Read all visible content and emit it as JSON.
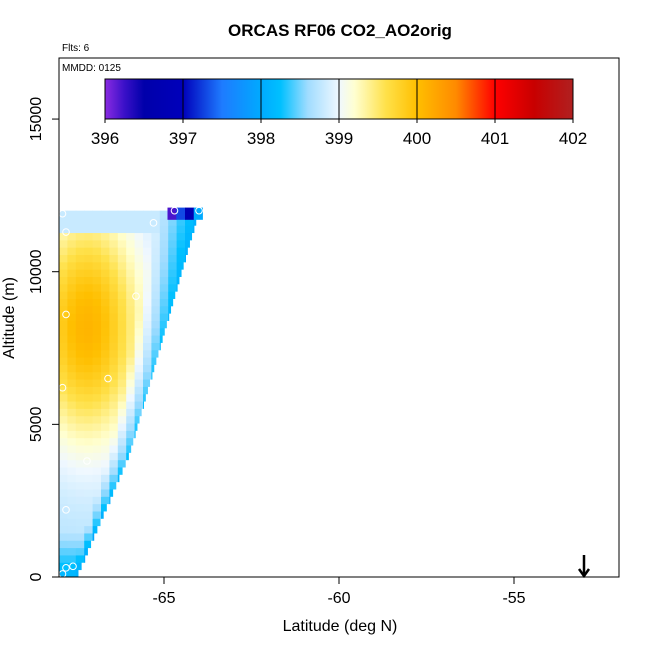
{
  "chart_data": {
    "type": "heatmap",
    "title": "ORCAS RF06 CO2_AO2orig",
    "xlabel": "Latitude (deg N)",
    "ylabel": "Altitude (m)",
    "xlim": [
      -68,
      -52
    ],
    "ylim": [
      0,
      17000
    ],
    "x_ticks": [
      -65,
      -60,
      -55
    ],
    "x_tick_labels": [
      "-65",
      "-60",
      "-55"
    ],
    "y_ticks": [
      0,
      5000,
      10000,
      15000
    ],
    "y_tick_labels": [
      "0",
      "5000",
      "10000",
      "15000"
    ],
    "annotations": {
      "flights": "Flts: 6",
      "date": "MMDD: 0125"
    },
    "colorbar": {
      "min": 396,
      "max": 402,
      "ticks": [
        396,
        397,
        398,
        399,
        400,
        401,
        402
      ],
      "tick_labels": [
        "396",
        "397",
        "398",
        "399",
        "400",
        "401",
        "402"
      ],
      "stops": [
        {
          "v": 396.0,
          "c": "#8a2be2"
        },
        {
          "v": 396.25,
          "c": "#3a10c8"
        },
        {
          "v": 396.5,
          "c": "#0000aa"
        },
        {
          "v": 397.0,
          "c": "#0000bb"
        },
        {
          "v": 397.5,
          "c": "#1e7bff"
        },
        {
          "v": 398.0,
          "c": "#00aaff"
        },
        {
          "v": 398.25,
          "c": "#00c0ff"
        },
        {
          "v": 398.6,
          "c": "#a0dcff"
        },
        {
          "v": 399.0,
          "c": "#f0f8ff"
        },
        {
          "v": 399.2,
          "c": "#ffffd0"
        },
        {
          "v": 399.6,
          "c": "#ffe14a"
        },
        {
          "v": 400.0,
          "c": "#ffbf00"
        },
        {
          "v": 400.5,
          "c": "#ff8a00"
        },
        {
          "v": 401.0,
          "c": "#ff0000"
        },
        {
          "v": 401.5,
          "c": "#c80000"
        },
        {
          "v": 402.0,
          "c": "#b02020"
        }
      ]
    },
    "field": {
      "description": "interpolated CO2 curtain, triangular region bounded by lat -68 and the flight envelope",
      "top_latitude_start": -68.0,
      "top_altitude": 12000,
      "edge_points": [
        {
          "lat": -67.5,
          "alt": 0
        },
        {
          "lat": -66.0,
          "alt": 4000
        },
        {
          "lat": -65.5,
          "alt": 6000
        },
        {
          "lat": -64.5,
          "alt": 10000
        },
        {
          "lat": -64.0,
          "alt": 12000
        }
      ],
      "core_value": 400.1,
      "core_lat": -67.2,
      "core_alt": 8200,
      "top_strip": {
        "lat_start": -64.9,
        "lat_end": -63.9,
        "alt_low": 11700,
        "alt_high": 12100,
        "values": [
          396.2,
          397.3,
          396.8,
          398.0
        ]
      }
    },
    "observation_points": [
      {
        "lat": -67.9,
        "alt": 11900
      },
      {
        "lat": -67.8,
        "alt": 11300
      },
      {
        "lat": -65.3,
        "alt": 11600
      },
      {
        "lat": -64.7,
        "alt": 12000
      },
      {
        "lat": -64.0,
        "alt": 12000
      },
      {
        "lat": -67.8,
        "alt": 8600
      },
      {
        "lat": -65.8,
        "alt": 9200
      },
      {
        "lat": -66.6,
        "alt": 6500
      },
      {
        "lat": -67.9,
        "alt": 6200
      },
      {
        "lat": -67.2,
        "alt": 3800
      },
      {
        "lat": -67.8,
        "alt": 2200
      },
      {
        "lat": -67.8,
        "alt": 300
      },
      {
        "lat": -67.9,
        "alt": 100
      },
      {
        "lat": -67.6,
        "alt": 350
      }
    ],
    "marker": {
      "type": "down-arrow",
      "lat": -53.0,
      "alt": 0
    }
  }
}
